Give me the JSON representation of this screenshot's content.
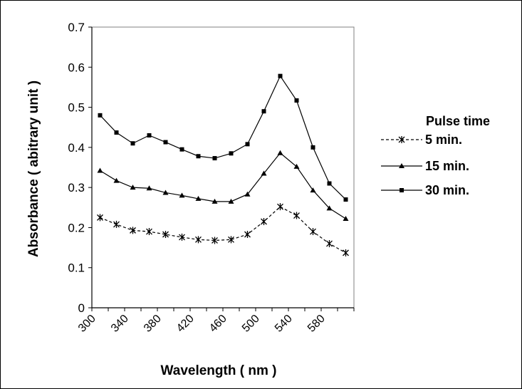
{
  "chart_data": {
    "type": "line",
    "xlabel": "Wavelength ( nm )",
    "ylabel": "Absorbance ( abitrary unit )",
    "xlim": [
      300,
      620
    ],
    "ylim": [
      0,
      0.7
    ],
    "x_ticks": [
      "300",
      "340",
      "380",
      "420",
      "460",
      "500",
      "540",
      "580"
    ],
    "y_ticks": [
      "0",
      "0.1",
      "0.2",
      "0.3",
      "0.4",
      "0.5",
      "0.6",
      "0.7"
    ],
    "grid": false,
    "legend_title": "Pulse time",
    "legend_position": "right",
    "x": [
      310,
      330,
      350,
      370,
      390,
      410,
      430,
      450,
      470,
      490,
      510,
      530,
      550,
      570,
      590,
      610
    ],
    "series": [
      {
        "name": " 5 min.",
        "marker": "x",
        "line": "dashed",
        "values": [
          0.225,
          0.208,
          0.193,
          0.19,
          0.183,
          0.176,
          0.17,
          0.168,
          0.17,
          0.183,
          0.215,
          0.252,
          0.23,
          0.19,
          0.16,
          0.137
        ]
      },
      {
        "name": "15 min.",
        "marker": "triangle",
        "line": "solid",
        "values": [
          0.342,
          0.317,
          0.3,
          0.298,
          0.287,
          0.28,
          0.272,
          0.265,
          0.265,
          0.283,
          0.335,
          0.386,
          0.352,
          0.293,
          0.248,
          0.222
        ]
      },
      {
        "name": "30 min.",
        "marker": "square",
        "line": "solid",
        "values": [
          0.48,
          0.437,
          0.41,
          0.43,
          0.413,
          0.395,
          0.378,
          0.373,
          0.385,
          0.408,
          0.49,
          0.578,
          0.517,
          0.4,
          0.31,
          0.27
        ]
      }
    ]
  }
}
